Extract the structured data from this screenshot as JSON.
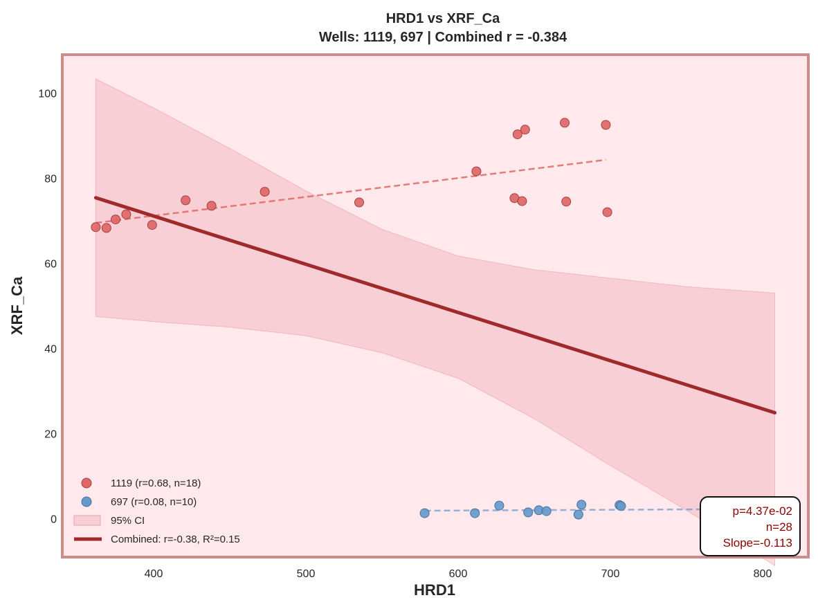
{
  "chart_data": {
    "type": "scatter",
    "title": "HRD1 vs XRF_Ca",
    "subtitle": "Wells: 1119, 697 | Combined r = -0.384",
    "xlabel": "HRD1",
    "ylabel": "XRF_Ca",
    "xlim": [
      340,
      830
    ],
    "ylim": [
      -9,
      109
    ],
    "xticks": [
      "400",
      "500",
      "600",
      "700",
      "800"
    ],
    "yticks": [
      "0",
      "20",
      "40",
      "60",
      "80",
      "100"
    ],
    "grid": false,
    "legend_position": "bottom-left",
    "series": [
      {
        "name": "1119 (r=0.68, n=18)",
        "color": "#e06666",
        "points": [
          [
            362,
            68.5
          ],
          [
            369,
            68.3
          ],
          [
            375,
            70.3
          ],
          [
            382,
            71.5
          ],
          [
            399,
            69.0
          ],
          [
            421,
            74.8
          ],
          [
            438,
            73.5
          ],
          [
            473,
            76.8
          ],
          [
            535,
            74.3
          ],
          [
            612,
            81.6
          ],
          [
            637,
            75.3
          ],
          [
            639,
            90.3
          ],
          [
            642,
            74.6
          ],
          [
            644,
            91.4
          ],
          [
            670,
            93.0
          ],
          [
            671,
            74.5
          ],
          [
            697,
            92.5
          ],
          [
            698,
            72.0
          ]
        ],
        "trend": [
          [
            362,
            69.5
          ],
          [
            697,
            84.3
          ]
        ]
      },
      {
        "name": "697 (r=0.08, n=10)",
        "color": "#6699cc",
        "points": [
          [
            578,
            1.3
          ],
          [
            611,
            1.3
          ],
          [
            627,
            3.1
          ],
          [
            646,
            1.5
          ],
          [
            653,
            2.0
          ],
          [
            658,
            1.8
          ],
          [
            679,
            1.0
          ],
          [
            681,
            3.3
          ],
          [
            706,
            3.2
          ],
          [
            707,
            3.0
          ]
        ],
        "trend": [
          [
            578,
            1.9
          ],
          [
            808,
            2.3
          ]
        ]
      }
    ],
    "combined": {
      "name": "Combined: r=-0.38, R²=0.15",
      "color": "#a0292b",
      "line": [
        [
          362,
          75.4
        ],
        [
          808,
          24.9
        ]
      ],
      "ci_name": "95% CI",
      "ci_color": "#e8a0a8",
      "ci_x": [
        362,
        400,
        450,
        500,
        550,
        600,
        650,
        700,
        750,
        808
      ],
      "ci_upper": [
        103.3,
        96.5,
        87.0,
        77.0,
        68.0,
        61.7,
        58.5,
        56.5,
        54.5,
        53.0
      ],
      "ci_lower": [
        47.5,
        46.3,
        45.0,
        43.0,
        39.0,
        33.0,
        23.5,
        12.5,
        2.0,
        -11.0
      ]
    },
    "stats": [
      "p=4.37e-02",
      "n=28",
      "Slope=-0.113"
    ],
    "colors": {
      "plot_background": "#ffe9ec",
      "frame": "#cd8b8b",
      "stats_text": "#8b0000"
    }
  }
}
